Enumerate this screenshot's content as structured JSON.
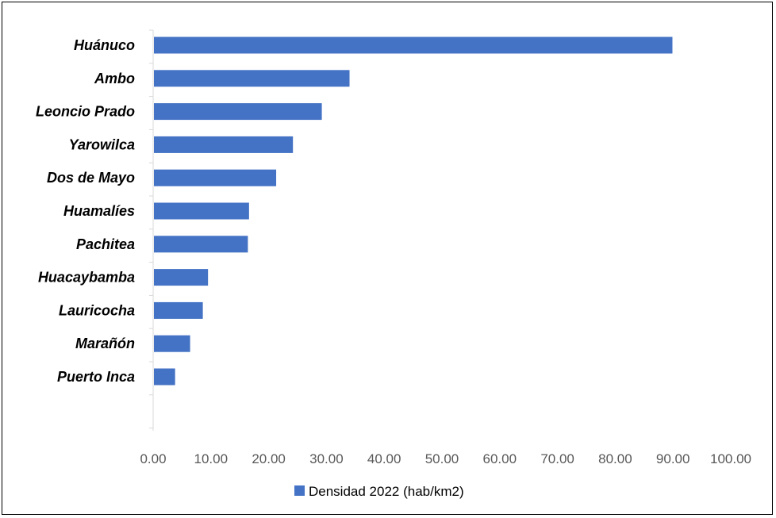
{
  "chart_data": {
    "type": "bar",
    "orientation": "horizontal",
    "categories": [
      "Huánuco",
      "Ambo",
      "Leoncio Prado",
      "Yarowilca",
      "Dos de Mayo",
      "Huamalíes",
      "Pachitea",
      "Huacaybamba",
      "Lauricocha",
      "Marañón",
      "Puerto Inca"
    ],
    "series": [
      {
        "name": "Densidad 2022 (hab/km2)",
        "color": "#4472C4",
        "values": [
          89.9,
          34.0,
          29.2,
          24.2,
          21.3,
          16.6,
          16.4,
          9.5,
          8.6,
          6.4,
          3.8
        ]
      }
    ],
    "xlim": [
      0,
      100
    ],
    "xticks": [
      "0.00",
      "10.00",
      "20.00",
      "30.00",
      "40.00",
      "50.00",
      "60.00",
      "70.00",
      "80.00",
      "90.00",
      "100.00"
    ],
    "grid": false,
    "legend_position": "bottom"
  }
}
